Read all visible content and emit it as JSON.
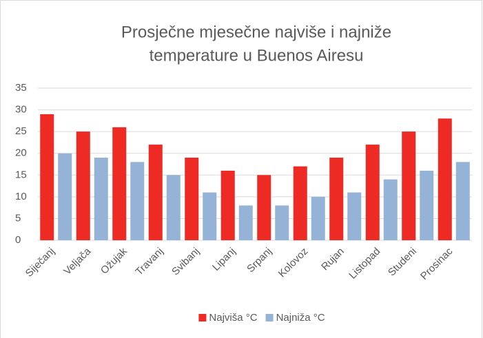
{
  "chart_data": {
    "type": "bar",
    "title": [
      "Prosječne mjesečne najviše i najniže",
      "temperature u  Buenos Airesu"
    ],
    "categories": [
      "Siječanj",
      "Veljača",
      "Ožujak",
      "Travanj",
      "Svibanj",
      "Lipanj",
      "Srpanj",
      "Kolovoz",
      "Rujan",
      "Listopad",
      "Studeni",
      "Prosinac"
    ],
    "series": [
      {
        "name": "Najviša °C",
        "color": "#ee2a24",
        "values": [
          29,
          25,
          26,
          22,
          19,
          16,
          15,
          17,
          19,
          22,
          25,
          28
        ]
      },
      {
        "name": "Najniža °C",
        "color": "#95b3d7",
        "values": [
          20,
          19,
          18,
          15,
          11,
          8,
          8,
          10,
          11,
          14,
          16,
          18
        ]
      }
    ],
    "ylim": [
      0,
      35
    ],
    "yticks": [
      0,
      5,
      10,
      15,
      20,
      25,
      30,
      35
    ],
    "grid": true,
    "legend": "bottom"
  }
}
